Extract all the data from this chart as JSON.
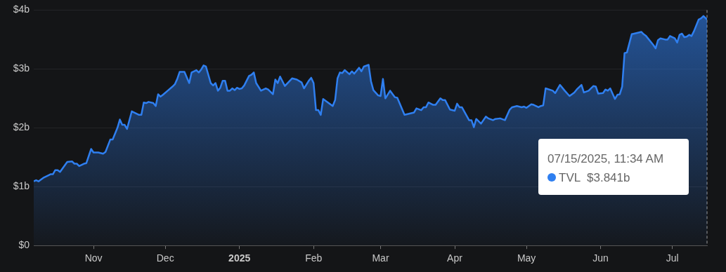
{
  "chart_data": {
    "type": "area",
    "xlim": [
      "2024-10-07",
      "2025-07-15T11:34"
    ],
    "ylim": [
      0,
      4
    ],
    "xticks": [
      {
        "value": "2024-11-01",
        "label": "Nov"
      },
      {
        "value": "2024-12-01",
        "label": "Dec"
      },
      {
        "value": "2025-01-01",
        "label": "2025"
      },
      {
        "value": "2025-02-01",
        "label": "Feb"
      },
      {
        "value": "2025-03-01",
        "label": "Mar"
      },
      {
        "value": "2025-04-01",
        "label": "Apr"
      },
      {
        "value": "2025-05-01",
        "label": "May"
      },
      {
        "value": "2025-06-01",
        "label": "Jun"
      },
      {
        "value": "2025-07-01",
        "label": "Jul"
      }
    ],
    "yticks": [
      {
        "value": 0,
        "label": "$0"
      },
      {
        "value": 1,
        "label": "$1b"
      },
      {
        "value": 2,
        "label": "$2b"
      },
      {
        "value": 3,
        "label": "$3b"
      },
      {
        "value": 4,
        "label": "$4b"
      }
    ],
    "grid": "y",
    "legend": false,
    "marker": "none",
    "annotations": [
      "07/15/2025, 11:34 AM"
    ],
    "ref_lines": [
      {
        "axis": "x",
        "value": "2025-07-15T11:34",
        "color": "#9e9e9e",
        "line_style": "dashed"
      }
    ],
    "x": [
      "2024-10-07",
      "2024-10-08",
      "2024-10-09",
      "2024-10-11",
      "2024-10-13",
      "2024-10-14",
      "2024-10-15",
      "2024-10-16",
      "2024-10-17",
      "2024-10-18",
      "2024-10-21",
      "2024-10-23",
      "2024-10-24",
      "2024-10-25",
      "2024-10-26",
      "2024-10-28",
      "2024-10-29",
      "2024-10-31",
      "2024-11-01",
      "2024-11-03",
      "2024-11-05",
      "2024-11-06",
      "2024-11-08",
      "2024-11-09",
      "2024-11-11",
      "2024-11-12",
      "2024-11-13",
      "2024-11-14",
      "2024-11-15",
      "2024-11-17",
      "2024-11-20",
      "2024-11-21",
      "2024-11-22",
      "2024-11-23",
      "2024-11-24",
      "2024-11-26",
      "2024-11-27",
      "2024-11-28",
      "2024-11-29",
      "2024-11-30",
      "2024-12-02",
      "2024-12-04",
      "2024-12-05",
      "2024-12-06",
      "2024-12-07",
      "2024-12-09",
      "2024-12-11",
      "2024-12-12",
      "2024-12-14",
      "2024-12-15",
      "2024-12-16",
      "2024-12-17",
      "2024-12-18",
      "2024-12-20",
      "2024-12-21",
      "2024-12-22",
      "2024-12-23",
      "2024-12-24",
      "2024-12-25",
      "2024-12-26",
      "2024-12-27",
      "2024-12-28",
      "2024-12-29",
      "2024-12-30",
      "2024-12-31",
      "2025-01-01",
      "2025-01-02",
      "2025-01-03",
      "2025-01-05",
      "2025-01-06",
      "2025-01-07",
      "2025-01-08",
      "2025-01-10",
      "2025-01-12",
      "2025-01-13",
      "2025-01-15",
      "2025-01-16",
      "2025-01-17",
      "2025-01-18",
      "2025-01-20",
      "2025-01-23",
      "2025-01-25",
      "2025-01-27",
      "2025-01-28",
      "2025-01-30",
      "2025-01-31",
      "2025-02-01",
      "2025-02-02",
      "2025-02-03",
      "2025-02-04",
      "2025-02-05",
      "2025-02-07",
      "2025-02-09",
      "2025-02-10",
      "2025-02-11",
      "2025-02-12",
      "2025-02-13",
      "2025-02-14",
      "2025-02-16",
      "2025-02-17",
      "2025-02-18",
      "2025-02-20",
      "2025-02-21",
      "2025-02-22",
      "2025-02-24",
      "2025-02-25",
      "2025-02-26",
      "2025-02-28",
      "2025-03-01",
      "2025-03-02",
      "2025-03-03",
      "2025-03-05",
      "2025-03-07",
      "2025-03-08",
      "2025-03-11",
      "2025-03-12",
      "2025-03-15",
      "2025-03-16",
      "2025-03-18",
      "2025-03-19",
      "2025-03-20",
      "2025-03-21",
      "2025-03-23",
      "2025-03-24",
      "2025-03-26",
      "2025-03-27",
      "2025-03-28",
      "2025-03-30",
      "2025-04-01",
      "2025-04-02",
      "2025-04-03",
      "2025-04-04",
      "2025-04-07",
      "2025-04-08",
      "2025-04-09",
      "2025-04-10",
      "2025-04-12",
      "2025-04-14",
      "2025-04-15",
      "2025-04-17",
      "2025-04-18",
      "2025-04-20",
      "2025-04-22",
      "2025-04-24",
      "2025-04-25",
      "2025-04-27",
      "2025-04-29",
      "2025-04-30",
      "2025-05-01",
      "2025-05-03",
      "2025-05-04",
      "2025-05-06",
      "2025-05-07",
      "2025-05-08",
      "2025-05-09",
      "2025-05-12",
      "2025-05-13",
      "2025-05-15",
      "2025-05-17",
      "2025-05-19",
      "2025-05-21",
      "2025-05-22",
      "2025-05-24",
      "2025-05-25",
      "2025-05-27",
      "2025-05-29",
      "2025-05-30",
      "2025-05-31",
      "2025-06-02",
      "2025-06-03",
      "2025-06-04",
      "2025-06-05",
      "2025-06-07",
      "2025-06-08",
      "2025-06-09",
      "2025-06-10",
      "2025-06-11",
      "2025-06-12",
      "2025-06-14",
      "2025-06-15",
      "2025-06-18",
      "2025-06-19",
      "2025-06-20",
      "2025-06-23",
      "2025-06-24",
      "2025-06-25",
      "2025-06-26",
      "2025-06-28",
      "2025-06-29",
      "2025-06-30",
      "2025-07-02",
      "2025-07-03",
      "2025-07-04",
      "2025-07-05",
      "2025-07-06",
      "2025-07-07",
      "2025-07-08",
      "2025-07-09",
      "2025-07-10",
      "2025-07-12",
      "2025-07-13",
      "2025-07-14",
      "2025-07-15T11:34"
    ],
    "series": [
      {
        "name": "TVL",
        "color": "#2f7ff0",
        "values": [
          1.09,
          1.11,
          1.09,
          1.15,
          1.19,
          1.21,
          1.21,
          1.28,
          1.28,
          1.25,
          1.42,
          1.43,
          1.39,
          1.39,
          1.35,
          1.39,
          1.4,
          1.64,
          1.58,
          1.58,
          1.56,
          1.59,
          1.8,
          1.8,
          2.0,
          2.14,
          2.05,
          2.05,
          1.98,
          2.28,
          2.22,
          2.22,
          2.43,
          2.42,
          2.44,
          2.42,
          2.37,
          2.57,
          2.53,
          2.56,
          2.63,
          2.7,
          2.74,
          2.83,
          2.95,
          2.95,
          2.76,
          2.94,
          2.98,
          2.94,
          2.99,
          3.06,
          3.04,
          2.76,
          2.72,
          2.76,
          2.63,
          2.68,
          2.8,
          2.8,
          2.63,
          2.63,
          2.67,
          2.64,
          2.68,
          2.66,
          2.67,
          2.72,
          2.88,
          2.9,
          2.94,
          2.76,
          2.63,
          2.67,
          2.65,
          2.57,
          2.82,
          2.76,
          2.87,
          2.71,
          2.84,
          2.82,
          2.77,
          2.67,
          2.8,
          2.85,
          2.76,
          2.3,
          2.3,
          2.22,
          2.49,
          2.43,
          2.37,
          2.47,
          2.84,
          2.94,
          2.93,
          2.98,
          2.91,
          2.96,
          2.92,
          3.02,
          2.96,
          3.04,
          3.07,
          2.79,
          2.64,
          2.55,
          2.54,
          2.83,
          2.5,
          2.63,
          2.52,
          2.51,
          2.22,
          2.23,
          2.26,
          2.33,
          2.3,
          2.35,
          2.35,
          2.43,
          2.39,
          2.39,
          2.5,
          2.47,
          2.47,
          2.31,
          2.29,
          2.41,
          2.35,
          2.35,
          2.13,
          2.13,
          2.01,
          2.15,
          2.07,
          2.19,
          2.16,
          2.13,
          2.15,
          2.16,
          2.13,
          2.31,
          2.35,
          2.37,
          2.35,
          2.36,
          2.34,
          2.4,
          2.39,
          2.35,
          2.37,
          2.38,
          2.67,
          2.63,
          2.59,
          2.73,
          2.63,
          2.54,
          2.6,
          2.65,
          2.73,
          2.6,
          2.63,
          2.71,
          2.7,
          2.58,
          2.59,
          2.65,
          2.63,
          2.67,
          2.49,
          2.56,
          2.57,
          2.7,
          3.27,
          3.28,
          3.59,
          3.6,
          3.63,
          3.59,
          3.56,
          3.41,
          3.35,
          3.49,
          3.52,
          3.5,
          3.5,
          3.56,
          3.52,
          3.45,
          3.58,
          3.6,
          3.54,
          3.55,
          3.58,
          3.56,
          3.64,
          3.84,
          3.86,
          3.9,
          3.841
        ],
        "value_labels": [
          null,
          null,
          null,
          null,
          null,
          null,
          null,
          null,
          null,
          null,
          null,
          null,
          null,
          null,
          null,
          null,
          null,
          null,
          null,
          null,
          null,
          null,
          null,
          null,
          null,
          null,
          null,
          null,
          null,
          null,
          null,
          null,
          null,
          null,
          null,
          null,
          null,
          null,
          null,
          null,
          null,
          null,
          null,
          null,
          null,
          null,
          null,
          null,
          null,
          null,
          null,
          null,
          null,
          null,
          null,
          null,
          null,
          null,
          null,
          null,
          null,
          null,
          null,
          null,
          null,
          null,
          null,
          null,
          null,
          null,
          null,
          null,
          null,
          null,
          null,
          null,
          null,
          null,
          null,
          null,
          null,
          null,
          null,
          null,
          null,
          null,
          null,
          null,
          null,
          null,
          null,
          null,
          null,
          null,
          null,
          null,
          null,
          null,
          null,
          null,
          null,
          null,
          null,
          null,
          null,
          null,
          null,
          null,
          null,
          null,
          null,
          null,
          null,
          null,
          null,
          null,
          null,
          null,
          null,
          null,
          null,
          null,
          null,
          null,
          null,
          null,
          null,
          null,
          null,
          null,
          null,
          null,
          null,
          null,
          null,
          null,
          null,
          null,
          null,
          null,
          null,
          null,
          null,
          null,
          null,
          null,
          null,
          null,
          null,
          null,
          null,
          null,
          null,
          null,
          null,
          null,
          null,
          null,
          null,
          null,
          null,
          null,
          null,
          null,
          null,
          null,
          null,
          null,
          null,
          null,
          null,
          null,
          null,
          null,
          null,
          null,
          null,
          null,
          null,
          null,
          null,
          null,
          null,
          null,
          null,
          null,
          null,
          null,
          null,
          null,
          null,
          null,
          null,
          null,
          null,
          null,
          null,
          null,
          null,
          null,
          null,
          null,
          "$3.841b"
        ]
      }
    ]
  }
}
